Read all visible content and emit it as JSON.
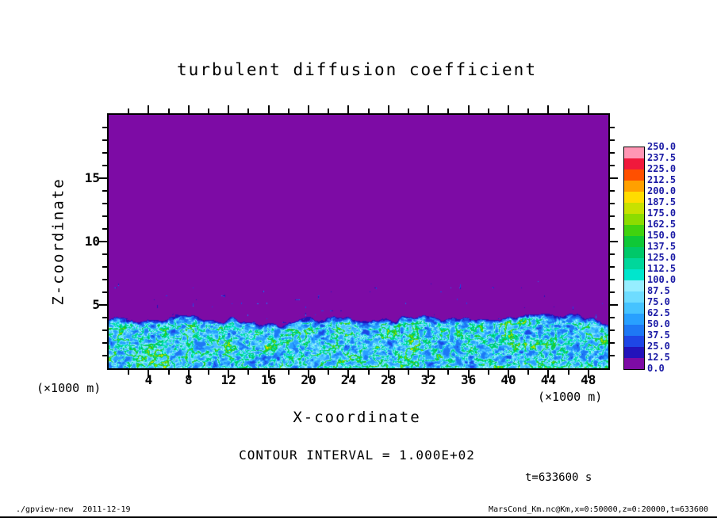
{
  "title": "turbulent diffusion coefficient",
  "axes": {
    "x": {
      "label": "X-coordinate",
      "unit": "(×1000 m)"
    },
    "y": {
      "label": "Z-coordinate",
      "unit": "(×1000 m)"
    }
  },
  "colorbar": {
    "labels": [
      "250.0",
      "237.5",
      "225.0",
      "212.5",
      "200.0",
      "187.5",
      "175.0",
      "162.5",
      "150.0",
      "137.5",
      "125.0",
      "112.5",
      "100.0",
      "87.5",
      "75.0",
      "62.5",
      "50.0",
      "37.5",
      "25.0",
      "12.5",
      "0.0"
    ],
    "label_color": "#1a1aa5"
  },
  "annotations": {
    "contour_interval": "CONTOUR INTERVAL = 1.000E+02",
    "time": "t=633600 s"
  },
  "footer": {
    "left": "./gpview-new  2011-12-19",
    "right": "MarsCond_Km.nc@Km,x=0:50000,z=0:20000,t=633600"
  },
  "chart_data": {
    "type": "heatmap",
    "title": "turbulent diffusion coefficient",
    "xlabel": "X-coordinate",
    "ylabel": "Z-coordinate",
    "axis_unit": "×1000 m",
    "xlim": [
      0,
      50
    ],
    "ylim": [
      0,
      20
    ],
    "x_ticks": [
      4,
      8,
      12,
      16,
      20,
      24,
      28,
      32,
      36,
      40,
      44,
      48
    ],
    "x_minor_tick_step": 2,
    "y_ticks": [
      5,
      10,
      15
    ],
    "y_minor_tick_step": 1,
    "contour_interval": 100.0,
    "time_seconds": 633600,
    "levels": [
      0,
      12.5,
      25,
      37.5,
      50,
      62.5,
      75,
      87.5,
      100,
      112.5,
      125,
      137.5,
      150,
      162.5,
      175,
      187.5,
      200,
      212.5,
      225,
      237.5,
      250
    ],
    "palette": [
      "#7d0ba5",
      "#2313bb",
      "#1e46e6",
      "#1e78f5",
      "#28a0ff",
      "#46c3ff",
      "#6edcff",
      "#96eeff",
      "#00e6cd",
      "#00d79b",
      "#00c869",
      "#0fc837",
      "#41d20f",
      "#8cdc00",
      "#c8e100",
      "#ffdc00",
      "#ffa000",
      "#ff5000",
      "#f0193c",
      "#ff96b4"
    ],
    "field": {
      "description": "Turbulent diffusion coefficient: ≈0 (purple, lowest contour bin) everywhere above an undulating boundary-layer top at z ≈ 2.7–5.3 (×1000 m); below it a convective turbulent layer with values mostly ≈12.5–150 forming bright pale-cyan filaments over blue plumes; sparse small dark-blue specks (≈12.5–50) scattered between z ≈ 4 and 6.5.",
      "background_value": 0,
      "boundary_layer_top_range": [
        2.7,
        5.3
      ],
      "typical_layer_values": [
        25,
        150
      ]
    }
  }
}
